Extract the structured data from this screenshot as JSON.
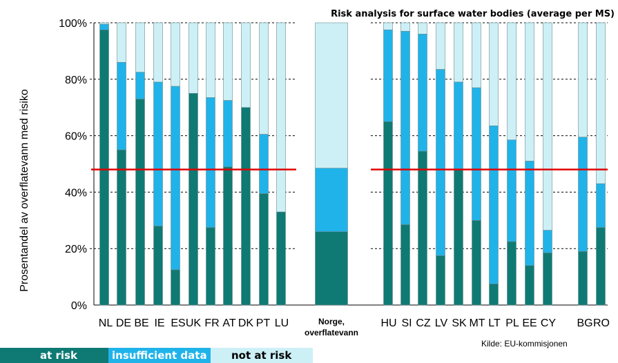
{
  "chart_data": {
    "type": "bar",
    "stacked": true,
    "title": "Risk analysis for surface water bodies (average per MS)",
    "ylabel": "Prosentandel av overflatevann med risiko",
    "ylim": [
      0,
      100
    ],
    "yticks": [
      "0%",
      "20%",
      "40%",
      "60%",
      "80%",
      "100%"
    ],
    "reference_line": 48,
    "categories": [
      "NL",
      "DE",
      "BE",
      "IE",
      "ES",
      "UK",
      "FR",
      "AT",
      "DK",
      "PT",
      "LU",
      "Norge, overflatevann",
      "HU",
      "SI",
      "CZ",
      "LV",
      "SK",
      "MT",
      "LT",
      "PL",
      "EE",
      "CY",
      "BG",
      "RO"
    ],
    "series": [
      {
        "name": "at risk",
        "values": [
          97.5,
          55,
          73,
          28,
          12.5,
          75,
          27.5,
          49,
          70,
          39.5,
          33,
          26,
          65,
          28.5,
          54.5,
          17.5,
          48,
          30,
          7.5,
          22.5,
          14,
          18.5,
          19,
          27.5
        ]
      },
      {
        "name": "insufficient data",
        "values": [
          2,
          31,
          9.5,
          51,
          65,
          0,
          46,
          23.5,
          0,
          21,
          0,
          22.5,
          32.5,
          68.5,
          41.5,
          66,
          31,
          47,
          56,
          36,
          37,
          8,
          40.5,
          15.5
        ]
      },
      {
        "name": "not at risk",
        "values": [
          0.5,
          14,
          17.5,
          21,
          22.5,
          25,
          26.5,
          27.5,
          30,
          39.5,
          67,
          51.5,
          2.5,
          3,
          4,
          16.5,
          21,
          23,
          36.5,
          41.5,
          49,
          73.5,
          40.5,
          57
        ]
      }
    ],
    "colors": {
      "at risk": "#0f7a74",
      "insufficient data": "#20b3ea",
      "not at risk": "#cdf0f7",
      "reference_line": "#e00000"
    },
    "grid": true,
    "legend": "bottom-left"
  },
  "norway_label": [
    "Norge,",
    "overflatevann"
  ],
  "source": "Kilde: EU-kommisjonen"
}
